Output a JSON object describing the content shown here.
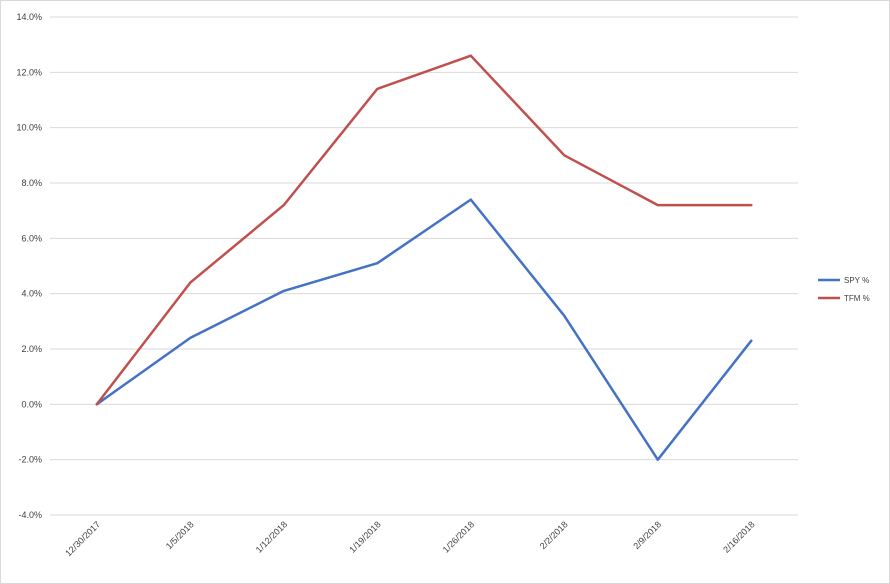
{
  "chart_data": {
    "type": "line",
    "title": "",
    "xlabel": "",
    "ylabel": "",
    "categories": [
      "12/30/2017",
      "1/5/2018",
      "1/12/2018",
      "1/19/2018",
      "1/26/2018",
      "2/2/2018",
      "2/9/2018",
      "2/16/2018"
    ],
    "series": [
      {
        "name": "SPY %",
        "color": "#4472c4",
        "values": [
          0.0,
          2.4,
          4.1,
          5.1,
          7.4,
          3.2,
          -2.0,
          2.3
        ]
      },
      {
        "name": "TFM %",
        "color": "#c0504d",
        "values": [
          0.0,
          4.4,
          7.2,
          11.4,
          12.6,
          9.0,
          7.2,
          7.2
        ]
      }
    ],
    "ylim": [
      -4,
      14
    ],
    "yticks": [
      "-4.0%",
      "-2.0%",
      "0.0%",
      "2.0%",
      "4.0%",
      "6.0%",
      "8.0%",
      "10.0%",
      "12.0%",
      "14.0%"
    ],
    "grid": "horizontal",
    "legend": "right"
  }
}
